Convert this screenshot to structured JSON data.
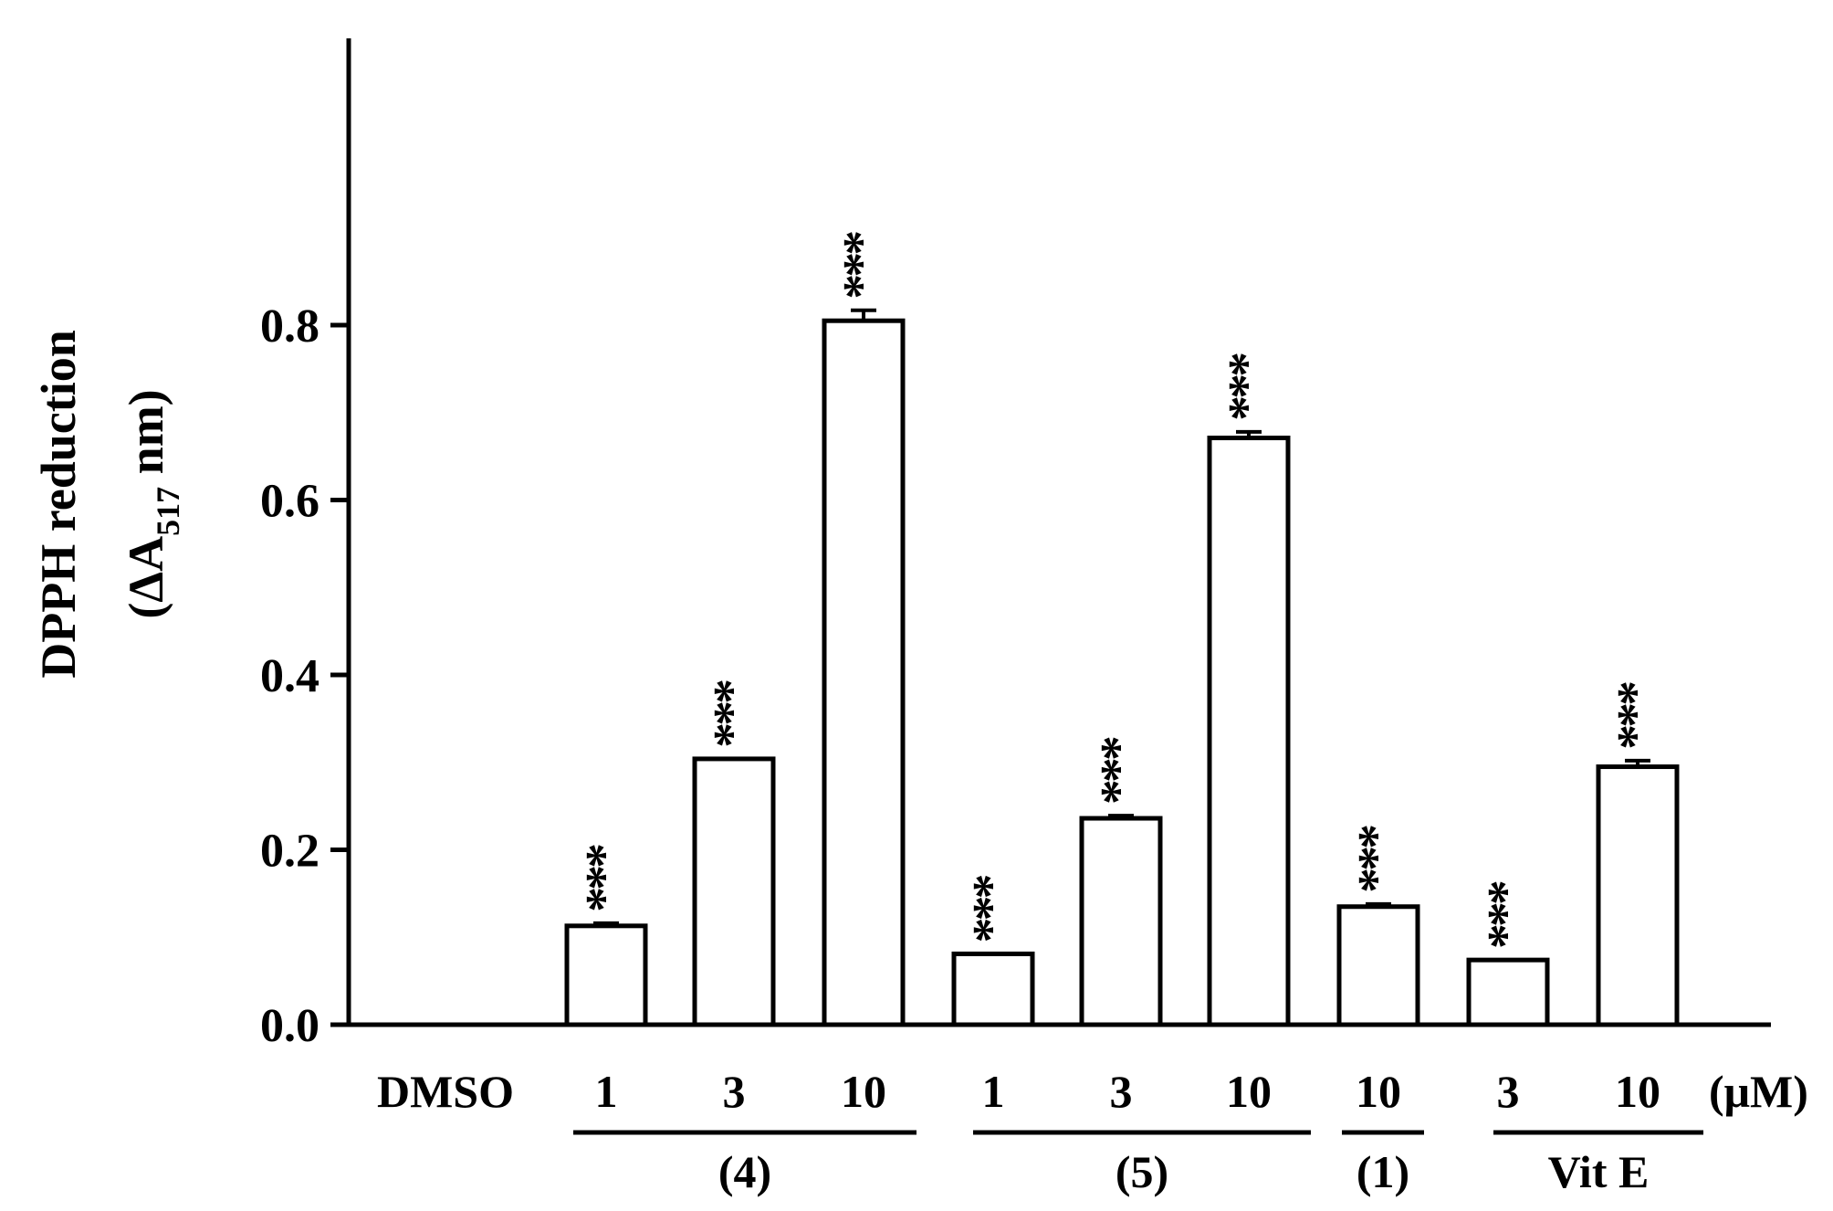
{
  "chart_data": {
    "type": "bar",
    "ylabel_line1": "DPPH reduction",
    "ylabel_line2_prefix": "(ΔA",
    "ylabel_line2_sub": "517",
    "ylabel_line2_suffix": " nm)",
    "ylim": [
      0,
      0.9
    ],
    "yticks": [
      "0.0",
      "0.2",
      "0.4",
      "0.6",
      "0.8"
    ],
    "ytick_values": [
      0,
      0.2,
      0.4,
      0.6,
      0.8
    ],
    "unit_label": "(μM)",
    "categories": [
      "DMSO",
      "1",
      "3",
      "10",
      "1",
      "3",
      "10",
      "10",
      "3",
      "10"
    ],
    "values": [
      0,
      0.113,
      0.304,
      0.805,
      0.081,
      0.236,
      0.671,
      0.135,
      0.074,
      0.295
    ],
    "errors": [
      0,
      0.003,
      0,
      0.012,
      0,
      0.003,
      0.007,
      0.003,
      0,
      0.007
    ],
    "significance": [
      "",
      "***",
      "***",
      "***",
      "***",
      "***",
      "***",
      "***",
      "***",
      "***"
    ],
    "groups": [
      {
        "label": "(4)",
        "first": 1,
        "last": 3
      },
      {
        "label": "(5)",
        "first": 4,
        "last": 6
      },
      {
        "label": "(1)",
        "first": 7,
        "last": 7
      },
      {
        "label": "Vit E",
        "first": 8,
        "last": 9
      }
    ],
    "grid": false
  }
}
